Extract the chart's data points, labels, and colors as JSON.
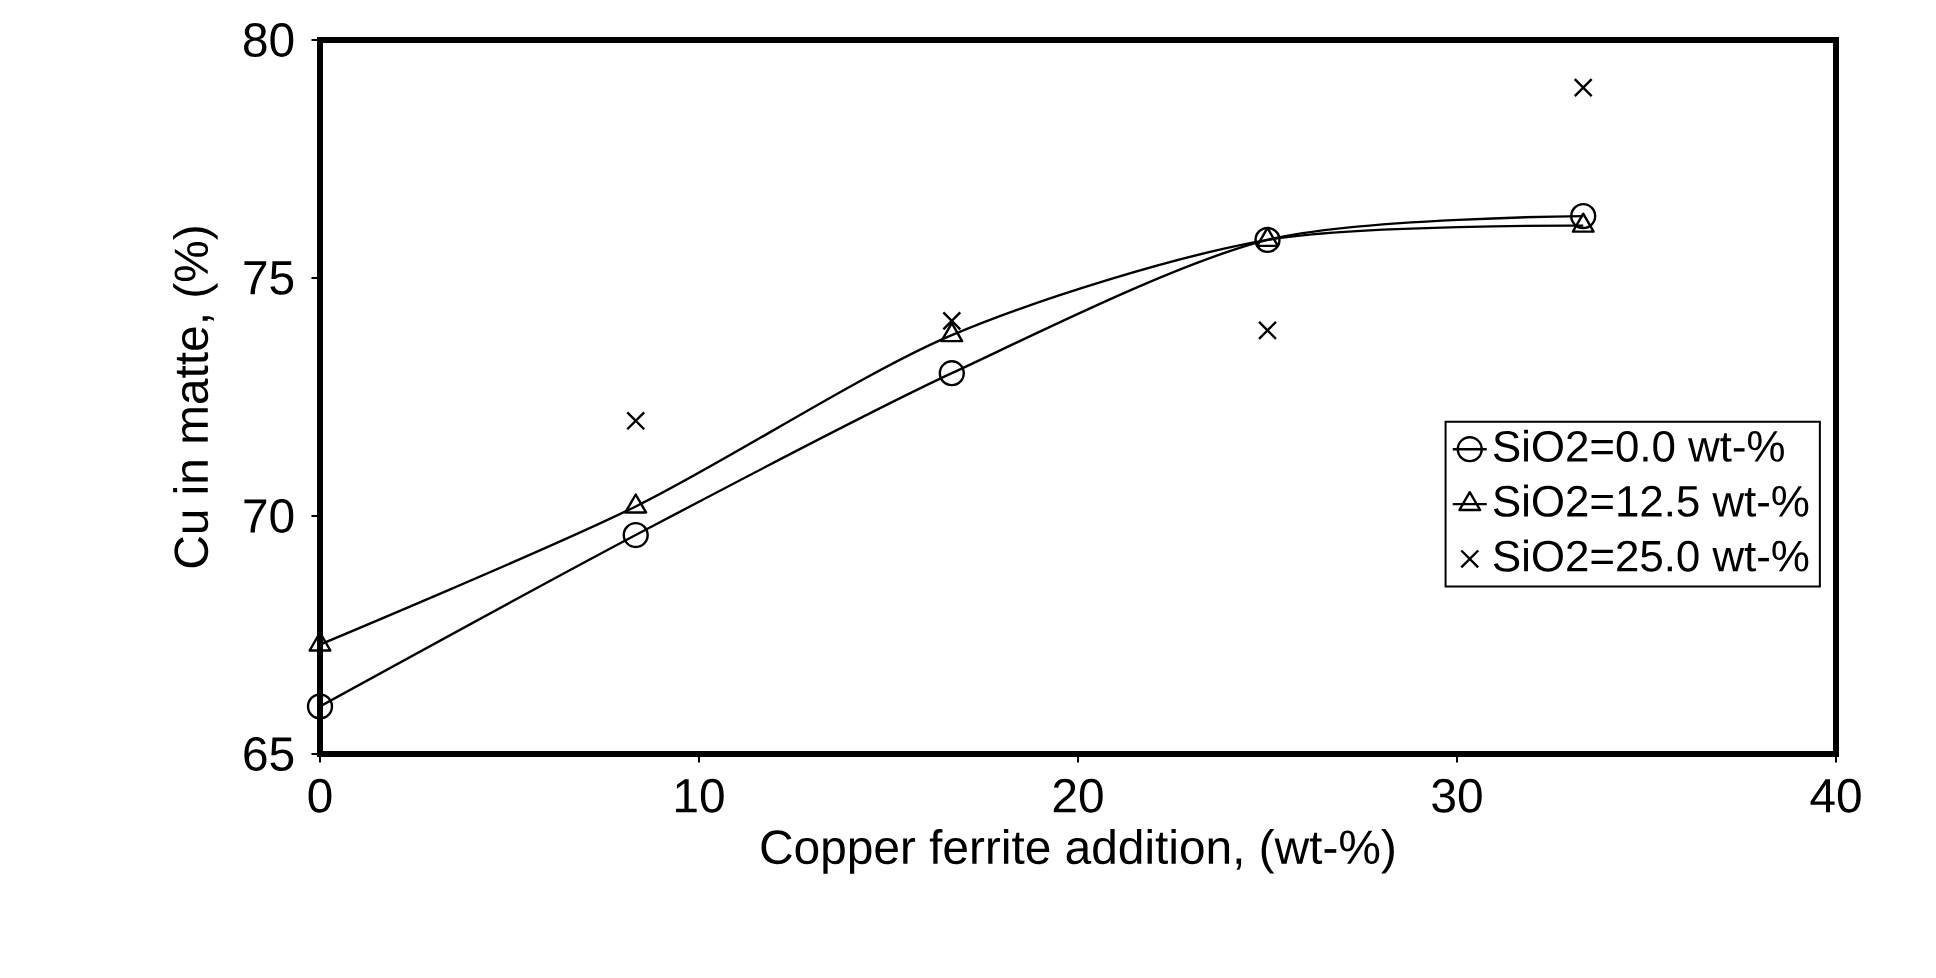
{
  "chart_data": {
    "type": "line",
    "xlabel": "Copper ferrite addition, (wt-%)",
    "ylabel": "Cu in matte, (%)",
    "xlim": [
      0,
      40
    ],
    "xticks": [
      0,
      10,
      20,
      30,
      40
    ],
    "ylim": [
      65,
      80
    ],
    "yticks": [
      65,
      70,
      75,
      80
    ],
    "grid": false,
    "legend": "right",
    "series": [
      {
        "name": "SiO2=0.0 wt-%",
        "color": "#000000",
        "marker": "circle",
        "x": [
          0,
          8.33,
          16.67,
          25,
          33.33
        ],
        "values": [
          66.0,
          69.6,
          73.0,
          75.8,
          76.3
        ]
      },
      {
        "name": "SiO2=12.5 wt-%",
        "color": "#000000",
        "marker": "triangle",
        "x": [
          0,
          8.33,
          16.67,
          25,
          33.33
        ],
        "values": [
          67.3,
          70.2,
          73.8,
          75.8,
          76.1
        ]
      },
      {
        "name": "SiO2=25.0 wt-%",
        "color": "#000000",
        "type": "scatter",
        "marker": "cross",
        "x": [
          8.33,
          16.67,
          25,
          33.33
        ],
        "values": [
          72.0,
          74.1,
          73.9,
          79.0
        ]
      }
    ]
  }
}
